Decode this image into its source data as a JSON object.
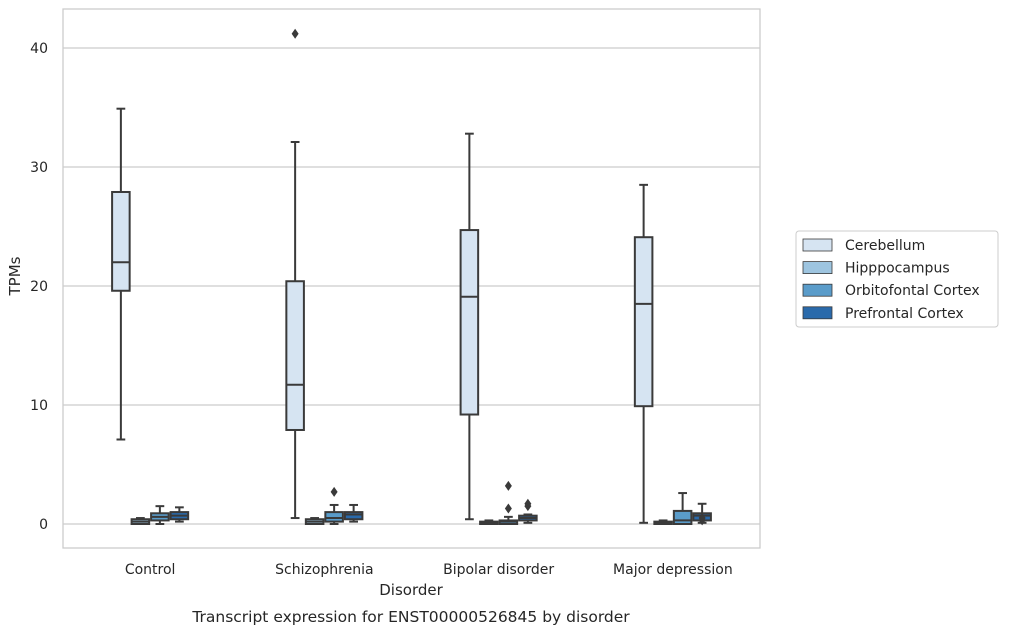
{
  "chart_data": {
    "type": "box",
    "title": "",
    "caption": "Transcript expression for ENST00000526845 by disorder",
    "xlabel": "Disorder",
    "ylabel": "TPMs",
    "ylim": [
      -2,
      43.2
    ],
    "yticks": [
      0,
      10,
      20,
      30,
      40
    ],
    "grid": "horizontal",
    "legend_position": "right",
    "categories": [
      "Control",
      "Schizophrenia",
      "Bipolar disorder",
      "Major depression"
    ],
    "series": [
      {
        "name": "Cerebellum",
        "color": "#d6e4f2",
        "boxes": [
          {
            "low": 7.1,
            "q1": 19.6,
            "median": 22.0,
            "q3": 27.9,
            "high": 34.9,
            "outliers": []
          },
          {
            "low": 0.5,
            "q1": 7.9,
            "median": 11.7,
            "q3": 20.4,
            "high": 32.1,
            "outliers": [
              41.2
            ]
          },
          {
            "low": 0.4,
            "q1": 9.2,
            "median": 19.1,
            "q3": 24.7,
            "high": 32.8,
            "outliers": []
          },
          {
            "low": 0.1,
            "q1": 9.9,
            "median": 18.5,
            "q3": 24.1,
            "high": 28.5,
            "outliers": []
          }
        ]
      },
      {
        "name": "Hipppocampus",
        "color": "#9ec5e0",
        "boxes": [
          {
            "low": 0.0,
            "q1": 0.0,
            "median": 0.2,
            "q3": 0.4,
            "high": 0.5,
            "outliers": []
          },
          {
            "low": 0.0,
            "q1": 0.0,
            "median": 0.2,
            "q3": 0.4,
            "high": 0.5,
            "outliers": []
          },
          {
            "low": 0.0,
            "q1": 0.0,
            "median": 0.1,
            "q3": 0.2,
            "high": 0.3,
            "outliers": []
          },
          {
            "low": 0.0,
            "q1": 0.0,
            "median": 0.1,
            "q3": 0.2,
            "high": 0.3,
            "outliers": []
          }
        ]
      },
      {
        "name": "Orbitofontal Cortex",
        "color": "#5a9cca",
        "boxes": [
          {
            "low": 0.0,
            "q1": 0.3,
            "median": 0.6,
            "q3": 0.9,
            "high": 1.5,
            "outliers": []
          },
          {
            "low": 0.0,
            "q1": 0.2,
            "median": 0.5,
            "q3": 1.0,
            "high": 1.6,
            "outliers": [
              2.7
            ]
          },
          {
            "low": 0.0,
            "q1": 0.0,
            "median": 0.2,
            "q3": 0.3,
            "high": 0.6,
            "outliers": [
              1.3,
              3.2
            ]
          },
          {
            "low": 0.0,
            "q1": 0.0,
            "median": 0.3,
            "q3": 1.1,
            "high": 2.6,
            "outliers": []
          }
        ]
      },
      {
        "name": "Prefrontal Cortex",
        "color": "#2a6aab",
        "boxes": [
          {
            "low": 0.2,
            "q1": 0.4,
            "median": 0.7,
            "q3": 1.0,
            "high": 1.4,
            "outliers": []
          },
          {
            "low": 0.2,
            "q1": 0.4,
            "median": 0.8,
            "q3": 1.0,
            "high": 1.6,
            "outliers": []
          },
          {
            "low": 0.1,
            "q1": 0.3,
            "median": 0.5,
            "q3": 0.7,
            "high": 0.8,
            "outliers": [
              1.5,
              1.7
            ]
          },
          {
            "low": 0.1,
            "q1": 0.3,
            "median": 0.7,
            "q3": 0.9,
            "high": 1.7,
            "outliers": [
              0.3,
              0.5
            ]
          }
        ]
      }
    ]
  }
}
